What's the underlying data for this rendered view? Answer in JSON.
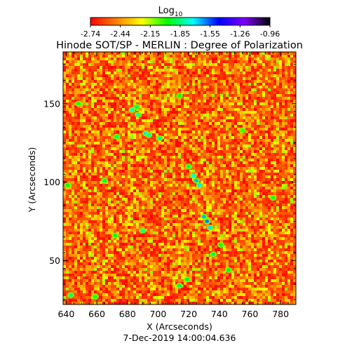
{
  "chart_data": {
    "type": "heatmap",
    "title": "Hinode SOT/SP - MERLIN : Degree of Polarization",
    "xlabel": "X (Arcseconds)",
    "ylabel": "Y (Arcseconds)",
    "xlim": [
      638,
      790
    ],
    "ylim": [
      22,
      183
    ],
    "xticks": [
      640,
      660,
      680,
      700,
      720,
      740,
      760,
      780
    ],
    "xtick_labels": [
      "640",
      "660",
      "680",
      "700",
      "720",
      "740",
      "760",
      "780"
    ],
    "yticks": [
      50,
      100,
      150
    ],
    "ytick_labels": [
      "50",
      "100",
      "150"
    ],
    "colorbar": {
      "label": "Log",
      "label_subscript": "10",
      "min": -2.74,
      "max": -0.96,
      "tick_labels": [
        "-2.74",
        "-2.44",
        "-2.15",
        "-1.85",
        "-1.55",
        "-1.26",
        "-0.96"
      ],
      "colors": [
        "#ff0000",
        "#ff8000",
        "#ffff00",
        "#00ff00",
        "#00ffff",
        "#0000ff",
        "#8000ff",
        "#000000"
      ]
    },
    "field": {
      "background_level": -2.55,
      "features": [
        {
          "x": 683,
          "y": 146,
          "level": -1.75
        },
        {
          "x": 687,
          "y": 143,
          "level": -1.8
        },
        {
          "x": 686,
          "y": 148,
          "level": -1.9
        },
        {
          "x": 692,
          "y": 131,
          "level": -1.7
        },
        {
          "x": 694,
          "y": 130,
          "level": -1.8
        },
        {
          "x": 701,
          "y": 128,
          "level": -1.85
        },
        {
          "x": 673,
          "y": 129,
          "level": -1.9
        },
        {
          "x": 714,
          "y": 155,
          "level": -2.0
        },
        {
          "x": 720,
          "y": 110,
          "level": -1.9
        },
        {
          "x": 723,
          "y": 104,
          "level": -1.75
        },
        {
          "x": 725,
          "y": 101,
          "level": -1.65
        },
        {
          "x": 727,
          "y": 98,
          "level": -1.7
        },
        {
          "x": 730,
          "y": 78,
          "level": -1.65
        },
        {
          "x": 732,
          "y": 75,
          "level": -1.6
        },
        {
          "x": 734,
          "y": 71,
          "level": -1.7
        },
        {
          "x": 690,
          "y": 69,
          "level": -1.8
        },
        {
          "x": 736,
          "y": 54,
          "level": -1.9
        },
        {
          "x": 741,
          "y": 60,
          "level": -2.0
        },
        {
          "x": 665,
          "y": 101,
          "level": -1.9
        },
        {
          "x": 641,
          "y": 98,
          "level": -1.95
        },
        {
          "x": 672,
          "y": 66,
          "level": -1.95
        },
        {
          "x": 648,
          "y": 150,
          "level": -2.0
        },
        {
          "x": 714,
          "y": 34,
          "level": -1.9
        },
        {
          "x": 719,
          "y": 38,
          "level": -1.95
        },
        {
          "x": 659,
          "y": 27,
          "level": -2.0
        },
        {
          "x": 643,
          "y": 28,
          "level": -1.85
        },
        {
          "x": 775,
          "y": 90,
          "level": -2.0
        },
        {
          "x": 755,
          "y": 133,
          "level": -2.05
        },
        {
          "x": 746,
          "y": 44,
          "level": -1.95
        }
      ]
    }
  },
  "footer": {
    "timestamp": "7-Dec-2019 14:00:04.636"
  }
}
